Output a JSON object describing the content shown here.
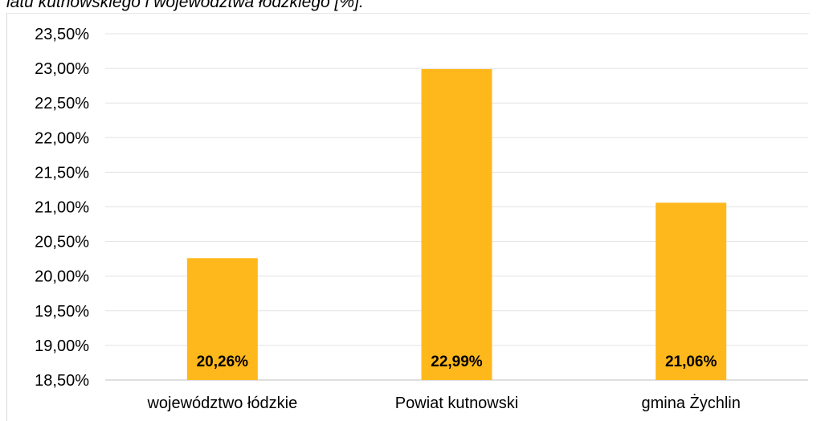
{
  "caption": "iatu kutnowskiego i województwa łódzkiego [%].",
  "chart_data": {
    "type": "bar",
    "categories": [
      "województwo łódzkie",
      "Powiat kutnowski",
      "gmina Żychlin"
    ],
    "values": [
      20.26,
      22.99,
      21.06
    ],
    "data_labels": [
      "20,26%",
      "22,99%",
      "21,06%"
    ],
    "ylim": [
      18.5,
      23.5
    ],
    "yticks": [
      23.5,
      23.0,
      22.5,
      22.0,
      21.5,
      21.0,
      20.5,
      20.0,
      19.5,
      19.0,
      18.5
    ],
    "ytick_labels": [
      "23,50%",
      "23,00%",
      "22,50%",
      "22,00%",
      "21,50%",
      "21,00%",
      "20,50%",
      "20,00%",
      "19,50%",
      "19,00%",
      "18,50%"
    ],
    "bar_color": "#FFB81C",
    "grid": true,
    "legend": "none"
  }
}
